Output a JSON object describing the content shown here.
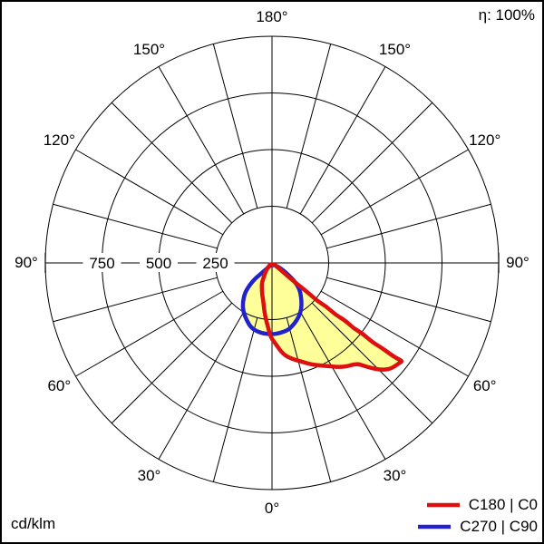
{
  "eta_label": "η: 100%",
  "unit_label": "cd/klm",
  "chart_data": {
    "type": "polar_luminous_intensity",
    "title": "",
    "unit": "cd/klm",
    "efficiency": "100%",
    "radial_max": 1000,
    "grid_step_deg": 15,
    "grid_color": "#000000",
    "fill_color": "#ffff99",
    "radial_ticks": [
      {
        "value": 250,
        "label": "250"
      },
      {
        "value": 500,
        "label": "500"
      },
      {
        "value": 750,
        "label": "750"
      }
    ],
    "angle_labels": [
      {
        "text": "0°",
        "gamma": 0
      },
      {
        "text": "30°",
        "gamma": 30
      },
      {
        "text": "30°",
        "gamma": -30
      },
      {
        "text": "60°",
        "gamma": 60
      },
      {
        "text": "60°",
        "gamma": -60
      },
      {
        "text": "90°",
        "gamma": 90
      },
      {
        "text": "90°",
        "gamma": -90
      },
      {
        "text": "120°",
        "gamma": 120
      },
      {
        "text": "120°",
        "gamma": -120
      },
      {
        "text": "150°",
        "gamma": 150
      },
      {
        "text": "150°",
        "gamma": -150
      },
      {
        "text": "180°",
        "gamma": 180
      }
    ],
    "series": [
      {
        "id": "c180-c0",
        "name": "C180 | C0",
        "color": "#dd0f0f",
        "fill_color": "#ffff99",
        "points_gamma_intensity": [
          [
            -50,
            10
          ],
          [
            -40,
            35
          ],
          [
            -33,
            60
          ],
          [
            -29,
            80
          ],
          [
            -27,
            98
          ],
          [
            -22,
            120
          ],
          [
            -17,
            148
          ],
          [
            -13,
            172
          ],
          [
            -10,
            203
          ],
          [
            -7,
            240
          ],
          [
            -4,
            278
          ],
          [
            -1,
            328
          ],
          [
            2,
            352
          ],
          [
            7,
            407
          ],
          [
            12,
            434
          ],
          [
            17,
            456
          ],
          [
            21,
            480
          ],
          [
            25,
            499
          ],
          [
            29,
            521
          ],
          [
            32.5,
            545
          ],
          [
            36,
            564
          ],
          [
            39,
            575
          ],
          [
            40.5,
            587
          ],
          [
            41.5,
            604
          ],
          [
            43.5,
            640
          ],
          [
            45.5,
            673
          ],
          [
            48,
            700
          ],
          [
            50.5,
            710
          ],
          [
            52,
            715
          ],
          [
            53.1,
            720
          ],
          [
            52.5,
            690
          ],
          [
            52.4,
            656
          ],
          [
            52.2,
            607
          ],
          [
            51.7,
            561
          ],
          [
            52.1,
            507
          ],
          [
            51.3,
            461
          ],
          [
            51.8,
            407
          ],
          [
            50.8,
            361
          ],
          [
            51.3,
            307
          ],
          [
            50,
            261
          ],
          [
            50.5,
            208
          ],
          [
            50.2,
            156
          ],
          [
            49.6,
            105
          ],
          [
            51.3,
            51
          ],
          [
            55,
            15
          ]
        ]
      },
      {
        "id": "c270-c90",
        "name": "C270 | C90",
        "color": "#2222cc",
        "fill_color": "#ffff99",
        "points_gamma_intensity": [
          [
            -30,
            12
          ],
          [
            -45,
            60
          ],
          [
            -47,
            100
          ],
          [
            -46,
            127
          ],
          [
            -44,
            155
          ],
          [
            -42,
            178
          ],
          [
            -37,
            214
          ],
          [
            -31,
            248
          ],
          [
            -24,
            276
          ],
          [
            -18,
            300
          ],
          [
            -12,
            310
          ],
          [
            -6,
            314
          ],
          [
            0,
            315
          ],
          [
            6,
            312
          ],
          [
            13,
            305
          ],
          [
            18,
            292
          ],
          [
            24,
            274
          ],
          [
            30,
            252
          ],
          [
            35,
            228
          ],
          [
            41,
            196
          ],
          [
            47,
            164
          ],
          [
            51,
            128
          ],
          [
            54,
            89
          ],
          [
            59,
            47
          ],
          [
            50,
            15
          ]
        ]
      }
    ]
  }
}
